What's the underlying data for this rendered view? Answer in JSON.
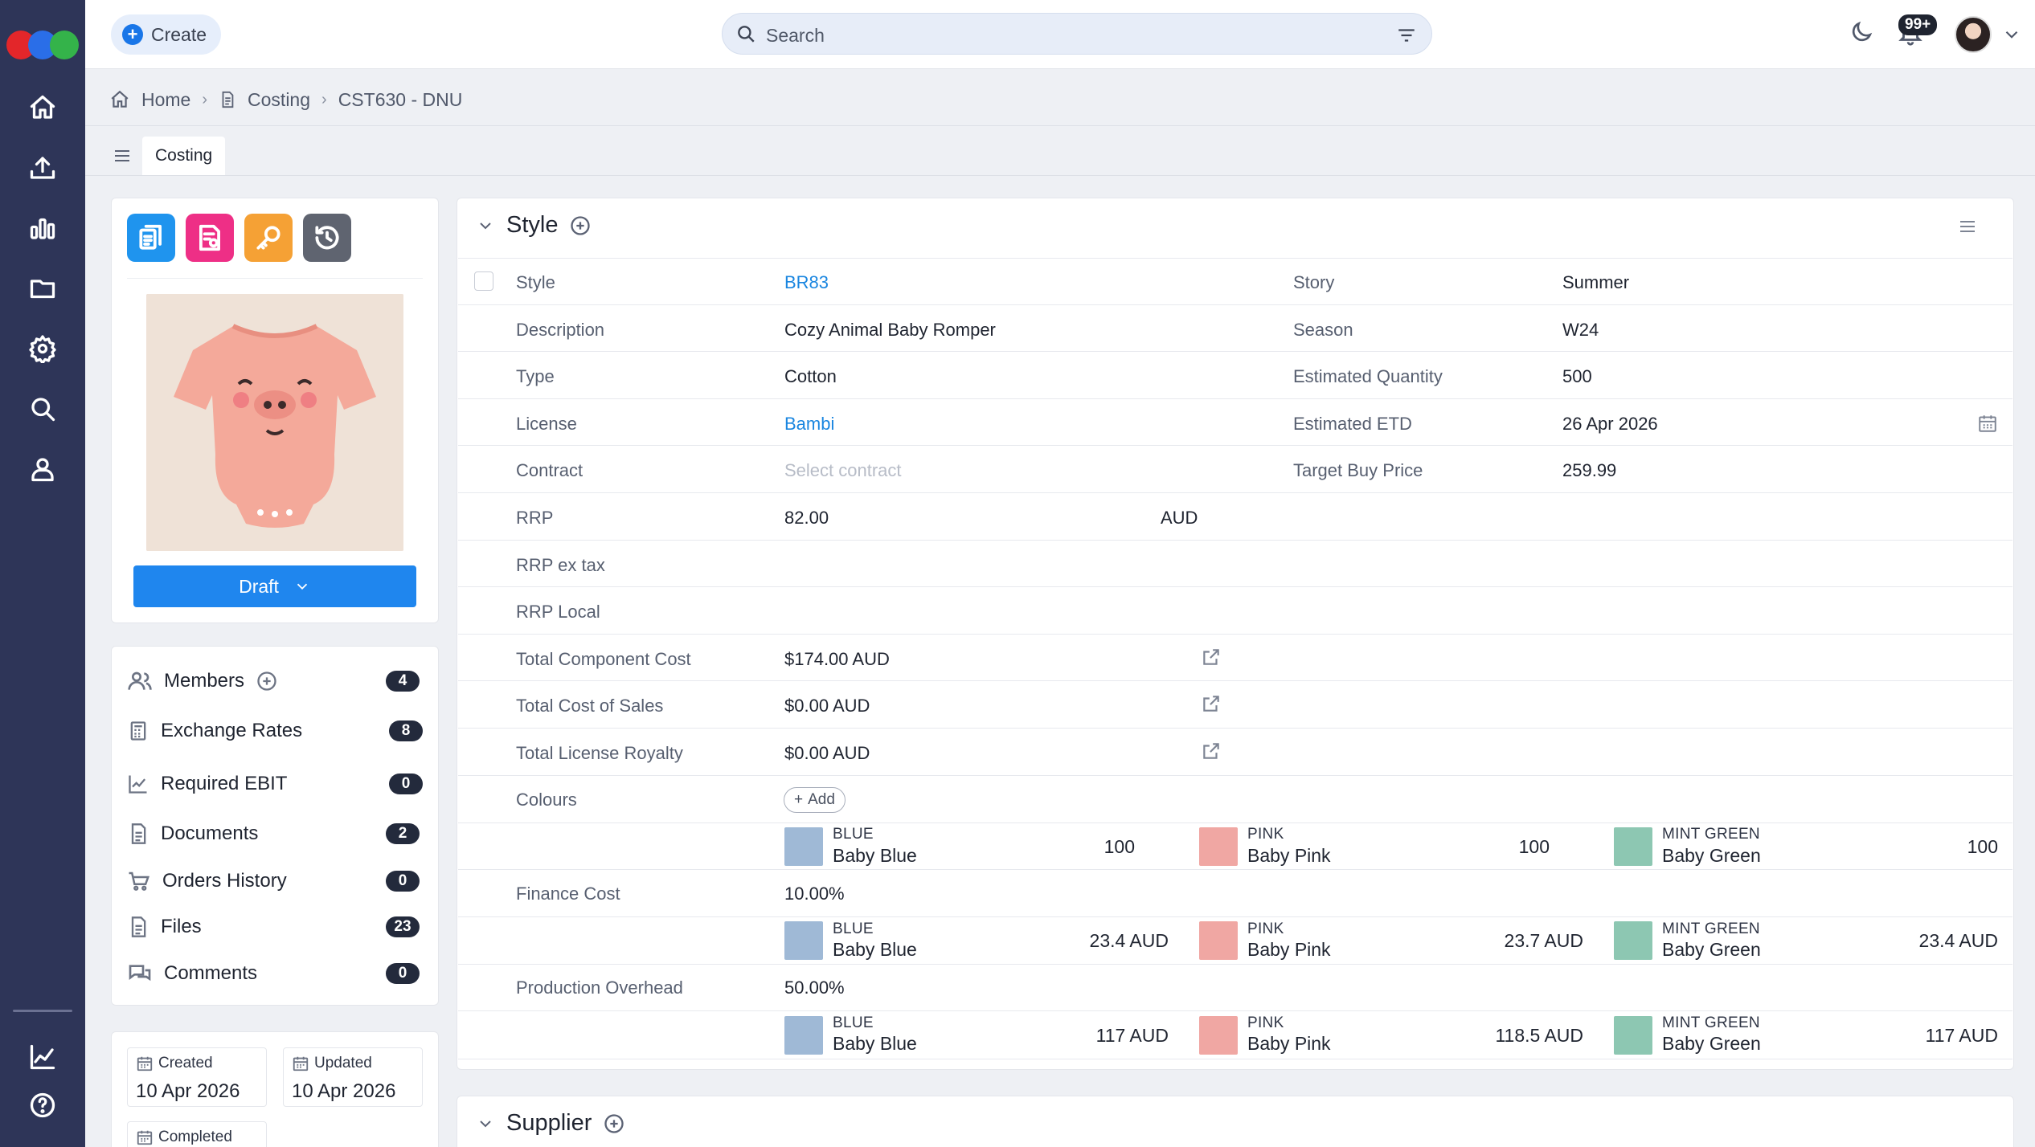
{
  "topbar": {
    "create_label": "Create",
    "search_placeholder": "Search",
    "notifications_count": "99+"
  },
  "breadcrumb": [
    "Home",
    "Costing",
    "CST630 - DNU"
  ],
  "tabs": [
    "Costing"
  ],
  "status": {
    "label": "Draft"
  },
  "panel_items": [
    {
      "label": "Members",
      "count": "4"
    },
    {
      "label": "Exchange Rates",
      "count": "8"
    },
    {
      "label": "Required EBIT",
      "count": "0"
    },
    {
      "label": "Documents",
      "count": "2"
    },
    {
      "label": "Orders History",
      "count": "0"
    },
    {
      "label": "Files",
      "count": "23"
    },
    {
      "label": "Comments",
      "count": "0"
    }
  ],
  "dates": {
    "created_label": "Created",
    "created_value": "10 Apr 2026",
    "updated_label": "Updated",
    "updated_value": "10 Apr 2026",
    "completed_label": "Completed"
  },
  "style_section": {
    "title": "Style",
    "fields": {
      "style_label": "Style",
      "style_value": "BR83",
      "story_label": "Story",
      "story_value": "Summer",
      "description_label": "Description",
      "description_value": "Cozy Animal Baby Romper",
      "season_label": "Season",
      "season_value": "W24",
      "type_label": "Type",
      "type_value": "Cotton",
      "est_qty_label": "Estimated Quantity",
      "est_qty_value": "500",
      "license_label": "License",
      "license_value": "Bambi",
      "est_etd_label": "Estimated ETD",
      "est_etd_value": "26 Apr 2026",
      "contract_label": "Contract",
      "contract_placeholder": "Select contract",
      "target_buy_label": "Target Buy Price",
      "target_buy_value": "259.99",
      "rrp_label": "RRP",
      "rrp_value": "82.00",
      "rrp_currency": "AUD",
      "rrp_ex_tax_label": "RRP ex tax",
      "rrp_local_label": "RRP Local",
      "total_component_label": "Total Component Cost",
      "total_component_value": "$174.00 AUD",
      "total_cos_label": "Total Cost of Sales",
      "total_cos_value": "$0.00 AUD",
      "total_royalty_label": "Total License Royalty",
      "total_royalty_value": "$0.00 AUD",
      "colours_label": "Colours",
      "add_label": "Add",
      "finance_label": "Finance Cost",
      "finance_value": "10.00%",
      "overhead_label": "Production Overhead",
      "overhead_value": "50.00%"
    },
    "colours": [
      {
        "code": "BLUE",
        "name": "Baby Blue",
        "qty": "100",
        "finance": "23.4 AUD",
        "overhead": "117 AUD",
        "color": "#9fb9d6"
      },
      {
        "code": "PINK",
        "name": "Baby Pink",
        "qty": "100",
        "finance": "23.7 AUD",
        "overhead": "118.5 AUD",
        "color": "#f0a7a3"
      },
      {
        "code": "MINT GREEN",
        "name": "Baby Green",
        "qty": "100",
        "finance": "23.4 AUD",
        "overhead": "117 AUD",
        "color": "#8dc7b2"
      }
    ]
  },
  "supplier_section": {
    "title": "Supplier"
  },
  "colors": {
    "rail": "#2e3558",
    "accent": "#1f86ee",
    "tool_blue": "#1f94ee",
    "tool_pink": "#ee2f86",
    "tool_orange": "#f5a135",
    "tool_gray": "#5f6470"
  }
}
